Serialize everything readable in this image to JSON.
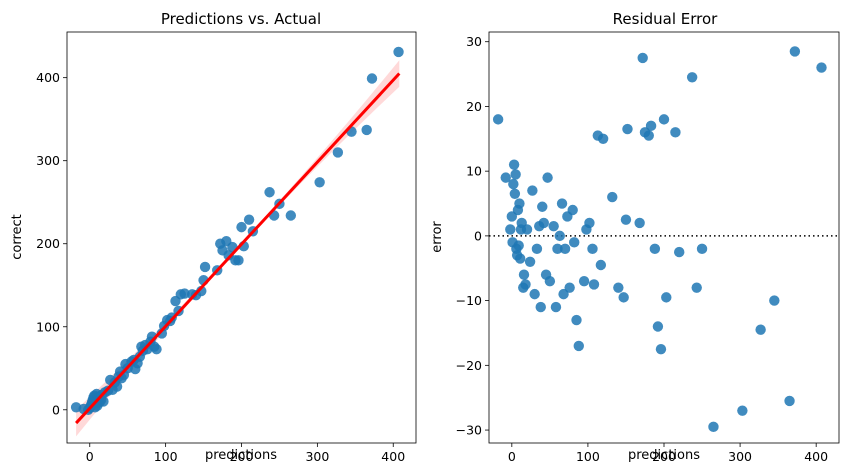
{
  "chart_data": [
    {
      "type": "scatter",
      "title": "Predictions vs. Actual",
      "xlabel": "predictions",
      "ylabel": "correct",
      "xlim": [
        -30,
        430
      ],
      "ylim": [
        -40,
        455
      ],
      "xticks": [
        0,
        100,
        200,
        300,
        400
      ],
      "yticks": [
        0,
        100,
        200,
        300,
        400
      ],
      "point_color": "#1f77b4",
      "regression_color": "#ff0000",
      "regression_line": {
        "x": [
          -18,
          408
        ],
        "y": [
          -16,
          405
        ]
      },
      "points": [
        [
          -18,
          3
        ],
        [
          -8,
          1
        ],
        [
          -2,
          0
        ],
        [
          0,
          2
        ],
        [
          1,
          4
        ],
        [
          2,
          6
        ],
        [
          3,
          9
        ],
        [
          4,
          12
        ],
        [
          5,
          15
        ],
        [
          6,
          17
        ],
        [
          7,
          3
        ],
        [
          8,
          8
        ],
        [
          9,
          19
        ],
        [
          10,
          5
        ],
        [
          11,
          13
        ],
        [
          12,
          16
        ],
        [
          13,
          9
        ],
        [
          15,
          12
        ],
        [
          16,
          18
        ],
        [
          18,
          10
        ],
        [
          20,
          21
        ],
        [
          24,
          23
        ],
        [
          27,
          36
        ],
        [
          30,
          24
        ],
        [
          33,
          33
        ],
        [
          36,
          28
        ],
        [
          38,
          40
        ],
        [
          40,
          46
        ],
        [
          42,
          38
        ],
        [
          45,
          42
        ],
        [
          47,
          55
        ],
        [
          50,
          50
        ],
        [
          55,
          58
        ],
        [
          58,
          60
        ],
        [
          60,
          49
        ],
        [
          63,
          56
        ],
        [
          66,
          64
        ],
        [
          68,
          76
        ],
        [
          70,
          71
        ],
        [
          73,
          78
        ],
        [
          76,
          73
        ],
        [
          80,
          82
        ],
        [
          82,
          88
        ],
        [
          85,
          76
        ],
        [
          88,
          73
        ],
        [
          95,
          92
        ],
        [
          98,
          101
        ],
        [
          102,
          108
        ],
        [
          106,
          107
        ],
        [
          108,
          111
        ],
        [
          113,
          131
        ],
        [
          117,
          119
        ],
        [
          120,
          139
        ],
        [
          125,
          140
        ],
        [
          135,
          139
        ],
        [
          140,
          138
        ],
        [
          147,
          143
        ],
        [
          150,
          156
        ],
        [
          152,
          172
        ],
        [
          168,
          168
        ],
        [
          172,
          200
        ],
        [
          175,
          192
        ],
        [
          180,
          203
        ],
        [
          183,
          186
        ],
        [
          188,
          196
        ],
        [
          192,
          180
        ],
        [
          196,
          180
        ],
        [
          200,
          220
        ],
        [
          203,
          197
        ],
        [
          210,
          229
        ],
        [
          215,
          215
        ],
        [
          237,
          262
        ],
        [
          243,
          234
        ],
        [
          250,
          248
        ],
        [
          265,
          234
        ],
        [
          303,
          274
        ],
        [
          327,
          310
        ],
        [
          345,
          335
        ],
        [
          365,
          337
        ],
        [
          372,
          399
        ],
        [
          407,
          431
        ]
      ]
    },
    {
      "type": "scatter",
      "title": "Residual Error",
      "xlabel": "predictions",
      "ylabel": "error",
      "xlim": [
        -30,
        430
      ],
      "ylim": [
        -32,
        31.5
      ],
      "xticks": [
        0,
        100,
        200,
        300,
        400
      ],
      "yticks": [
        -30,
        -20,
        -10,
        0,
        10,
        20,
        30
      ],
      "point_color": "#1f77b4",
      "reference_line_y": 0,
      "points": [
        [
          -18,
          18
        ],
        [
          -8,
          9
        ],
        [
          -2,
          1
        ],
        [
          0,
          3
        ],
        [
          1,
          -1
        ],
        [
          2,
          8
        ],
        [
          3,
          11
        ],
        [
          4,
          6.5
        ],
        [
          5,
          9.5
        ],
        [
          6,
          -2
        ],
        [
          7,
          -3
        ],
        [
          8,
          4
        ],
        [
          9,
          -1.5
        ],
        [
          10,
          5
        ],
        [
          11,
          -3.5
        ],
        [
          12,
          1
        ],
        [
          13,
          2
        ],
        [
          15,
          -8
        ],
        [
          16,
          -6
        ],
        [
          18,
          -7.5
        ],
        [
          20,
          1
        ],
        [
          24,
          -4
        ],
        [
          27,
          7
        ],
        [
          30,
          -9
        ],
        [
          33,
          -2
        ],
        [
          36,
          1.5
        ],
        [
          38,
          -11
        ],
        [
          40,
          4.5
        ],
        [
          42,
          2
        ],
        [
          45,
          -6
        ],
        [
          47,
          9
        ],
        [
          50,
          -7
        ],
        [
          55,
          1.5
        ],
        [
          58,
          -11
        ],
        [
          60,
          -2
        ],
        [
          63,
          0
        ],
        [
          66,
          5
        ],
        [
          68,
          -9
        ],
        [
          70,
          -2
        ],
        [
          73,
          3
        ],
        [
          76,
          -8
        ],
        [
          80,
          4
        ],
        [
          82,
          -1
        ],
        [
          85,
          -13
        ],
        [
          88,
          -17
        ],
        [
          95,
          -7
        ],
        [
          98,
          1
        ],
        [
          102,
          2
        ],
        [
          106,
          -2
        ],
        [
          108,
          -7.5
        ],
        [
          113,
          15.5
        ],
        [
          117,
          -4.5
        ],
        [
          120,
          15
        ],
        [
          132,
          6
        ],
        [
          140,
          -8
        ],
        [
          147,
          -9.5
        ],
        [
          150,
          2.5
        ],
        [
          152,
          16.5
        ],
        [
          168,
          2
        ],
        [
          172,
          27.5
        ],
        [
          175,
          16
        ],
        [
          180,
          15.5
        ],
        [
          183,
          17
        ],
        [
          188,
          -2
        ],
        [
          192,
          -14
        ],
        [
          196,
          -17.5
        ],
        [
          200,
          18
        ],
        [
          203,
          -9.5
        ],
        [
          215,
          16
        ],
        [
          220,
          -2.5
        ],
        [
          237,
          24.5
        ],
        [
          243,
          -8
        ],
        [
          250,
          -2
        ],
        [
          265,
          -29.5
        ],
        [
          303,
          -27
        ],
        [
          327,
          -14.5
        ],
        [
          345,
          -10
        ],
        [
          365,
          -25.5
        ],
        [
          372,
          28.5
        ],
        [
          407,
          26
        ]
      ]
    }
  ]
}
